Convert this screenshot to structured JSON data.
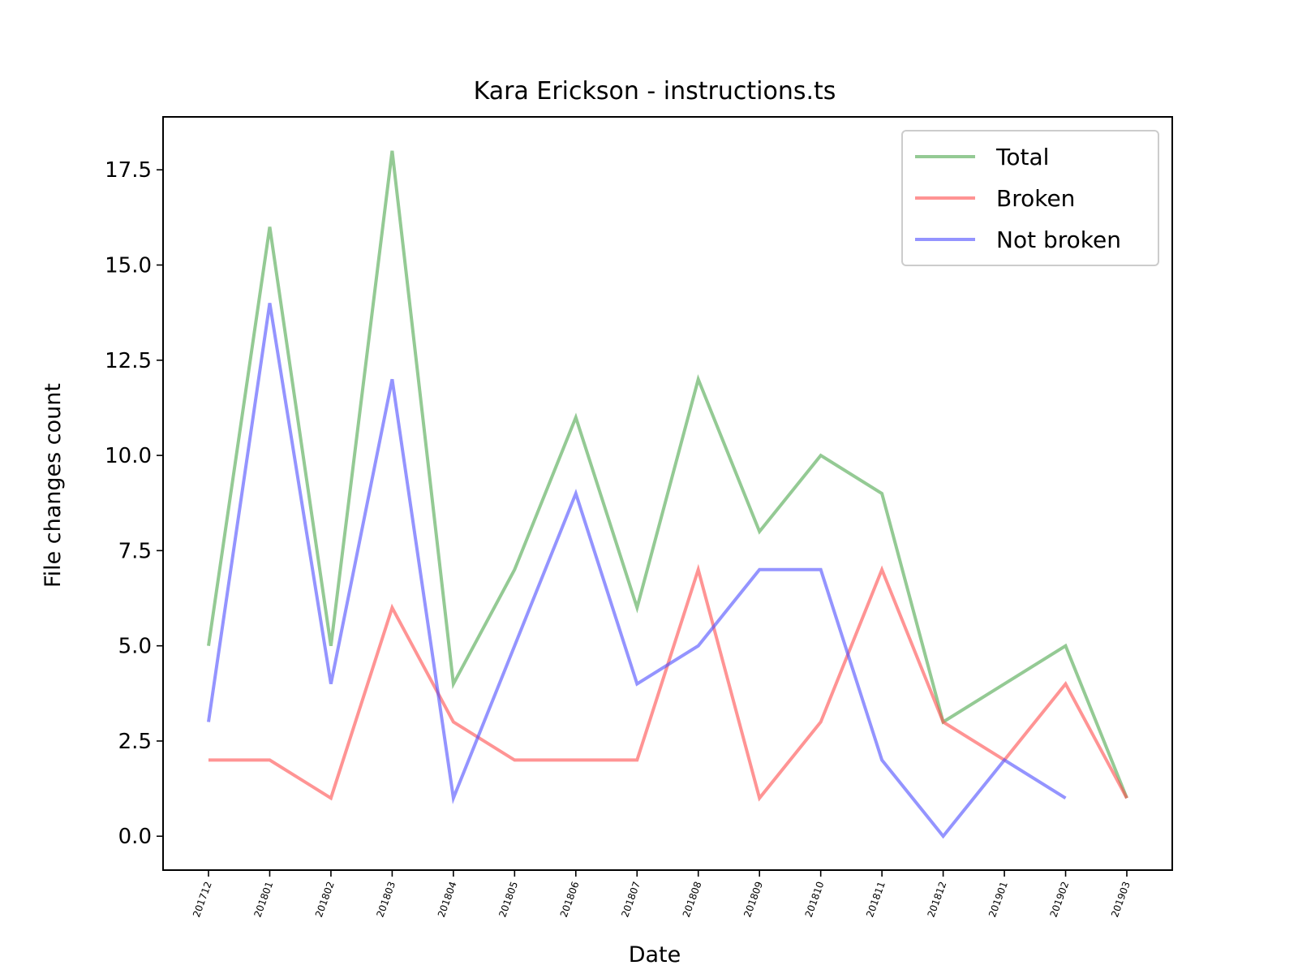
{
  "chart_data": {
    "type": "line",
    "title": "Kara Erickson - instructions.ts",
    "xlabel": "Date",
    "ylabel": "File changes count",
    "categories": [
      "201712",
      "201801",
      "201802",
      "201803",
      "201804",
      "201805",
      "201806",
      "201807",
      "201808",
      "201809",
      "201810",
      "201811",
      "201812",
      "201901",
      "201902",
      "201903"
    ],
    "ylim": [
      -0.89,
      18.89
    ],
    "yticks": [
      0.0,
      2.5,
      5.0,
      7.5,
      10.0,
      12.5,
      15.0,
      17.5
    ],
    "ytick_labels": [
      "0.0",
      "2.5",
      "5.0",
      "7.5",
      "10.0",
      "12.5",
      "15.0",
      "17.5"
    ],
    "grid": false,
    "legend_position": "top-right",
    "series": [
      {
        "name": "Total",
        "color": "#4ca64c",
        "values": [
          5,
          16,
          5,
          18,
          4,
          7,
          11,
          6,
          12,
          8,
          10,
          9,
          3,
          4,
          5,
          1
        ]
      },
      {
        "name": "Broken",
        "color": "#ff4d4d",
        "values": [
          2,
          2,
          1,
          6,
          3,
          2,
          2,
          2,
          7,
          1,
          3,
          7,
          3,
          2,
          4,
          1
        ]
      },
      {
        "name": "Not broken",
        "color": "#4d4dff",
        "values": [
          3,
          14,
          4,
          12,
          1,
          5,
          9,
          4,
          5,
          7,
          7,
          2,
          0,
          2,
          1,
          null
        ]
      }
    ]
  }
}
